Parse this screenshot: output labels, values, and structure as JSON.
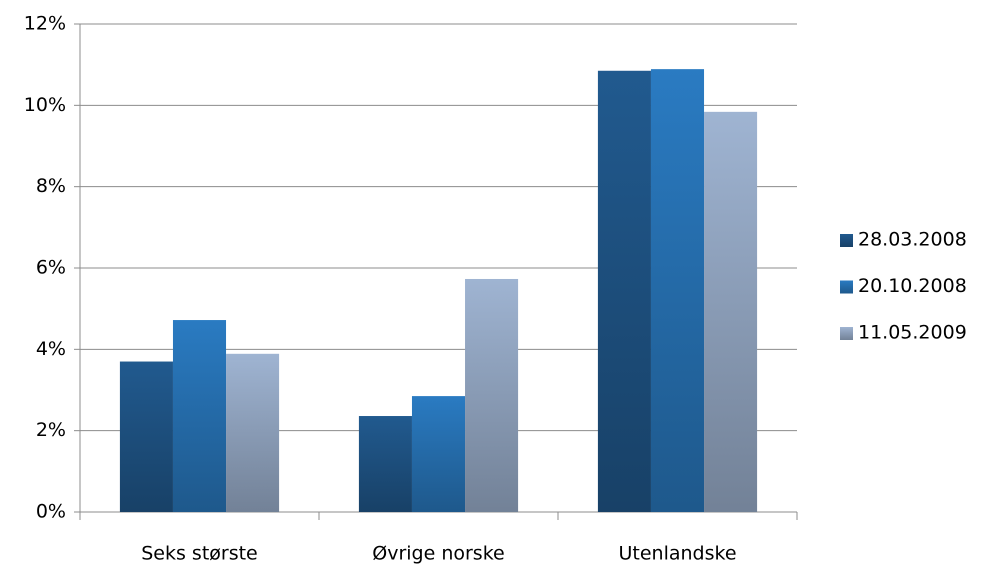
{
  "chart_data": {
    "type": "bar",
    "categories": [
      "Seks største",
      "Øvrige norske",
      "Utenlandske"
    ],
    "series": [
      {
        "name": "28.03.2008",
        "color": "#215a8f",
        "values": [
          3.7,
          2.36,
          10.85
        ]
      },
      {
        "name": "20.10.2008",
        "color": "#2a7bc2",
        "values": [
          4.72,
          2.85,
          10.89
        ]
      },
      {
        "name": "11.05.2009",
        "color": "#9fb4d2",
        "values": [
          3.89,
          5.73,
          9.84
        ]
      }
    ],
    "ylim": [
      0,
      12
    ],
    "yticks": [
      {
        "value": 0,
        "label": "0%"
      },
      {
        "value": 2,
        "label": "2%"
      },
      {
        "value": 4,
        "label": "4%"
      },
      {
        "value": 6,
        "label": "6%"
      },
      {
        "value": 8,
        "label": "8%"
      },
      {
        "value": 10,
        "label": "10%"
      },
      {
        "value": 12,
        "label": "12%"
      }
    ],
    "grid": true,
    "legend": "right"
  }
}
